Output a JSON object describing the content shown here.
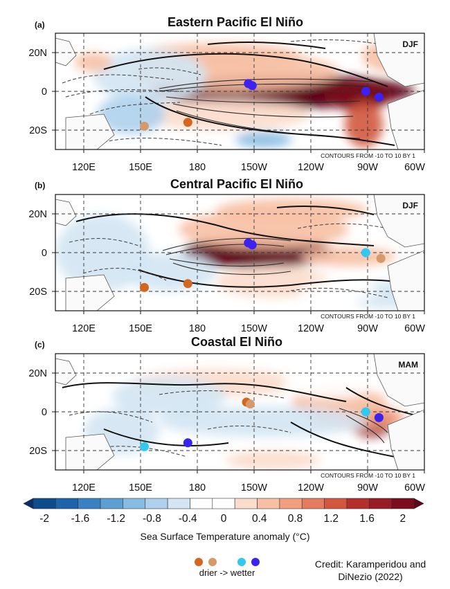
{
  "chart_data": [
    {
      "type": "heatmap",
      "panel_label": "(a)",
      "title": "Eastern Pacific El Niño",
      "season": "DJF",
      "contour_note": "CONTOURS FROM -10 TO 10 BY 1",
      "x_ticks": [
        "120E",
        "150E",
        "180",
        "150W",
        "120W",
        "90W",
        "60W"
      ],
      "y_ticks": [
        "20N",
        "0",
        "20S"
      ],
      "xlim_deg_east": [
        105,
        300
      ],
      "ylim_deg_north": [
        -30,
        30
      ],
      "sst_anomaly_blobs": [
        {
          "lon": 225,
          "lat": 0,
          "rx": 70,
          "ry": 9,
          "value": 2.0
        },
        {
          "lon": 245,
          "lat": -1,
          "rx": 40,
          "ry": 6,
          "value": 2.4
        },
        {
          "lon": 265,
          "lat": -2,
          "rx": 18,
          "ry": 8,
          "value": 1.6
        },
        {
          "lon": 268,
          "lat": -17,
          "rx": 10,
          "ry": 12,
          "value": 1.0
        },
        {
          "lon": 200,
          "lat": 10,
          "rx": 55,
          "ry": 10,
          "value": 0.5
        },
        {
          "lon": 190,
          "lat": 18,
          "rx": 45,
          "ry": 7,
          "value": 0.4
        },
        {
          "lon": 195,
          "lat": -12,
          "rx": 45,
          "ry": 8,
          "value": 0.3
        },
        {
          "lon": 155,
          "lat": 8,
          "rx": 30,
          "ry": 14,
          "value": -0.5
        },
        {
          "lon": 145,
          "lat": -12,
          "rx": 18,
          "ry": 10,
          "value": -0.6
        },
        {
          "lon": 215,
          "lat": -25,
          "rx": 15,
          "ry": 4,
          "value": -0.8
        },
        {
          "lon": 125,
          "lat": 15,
          "rx": 10,
          "ry": 5,
          "value": 0.5
        },
        {
          "lon": 282,
          "lat": 18,
          "rx": 15,
          "ry": 8,
          "value": 0.5
        }
      ],
      "points": [
        {
          "lon": 207,
          "lat": 4,
          "class": "wetter-strong"
        },
        {
          "lon": 209,
          "lat": 3,
          "class": "wetter-strong"
        },
        {
          "lon": 269,
          "lat": 0,
          "class": "wetter-strong"
        },
        {
          "lon": 276,
          "lat": -3,
          "class": "wetter-strong"
        },
        {
          "lon": 152,
          "lat": -18,
          "class": "drier-weak"
        },
        {
          "lon": 175,
          "lat": -16,
          "class": "drier-strong"
        }
      ]
    },
    {
      "type": "heatmap",
      "panel_label": "(b)",
      "title": "Central Pacific El Niño",
      "season": "DJF",
      "contour_note": "CONTOURS FROM -10 TO 10 BY 1",
      "x_ticks": [
        "120E",
        "150E",
        "180",
        "150W",
        "120W",
        "90W",
        "60W"
      ],
      "y_ticks": [
        "20N",
        "0",
        "20S"
      ],
      "xlim_deg_east": [
        105,
        300
      ],
      "ylim_deg_north": [
        -30,
        30
      ],
      "sst_anomaly_blobs": [
        {
          "lon": 212,
          "lat": 0,
          "rx": 40,
          "ry": 8,
          "value": 1.8
        },
        {
          "lon": 205,
          "lat": 1,
          "rx": 20,
          "ry": 5,
          "value": 2.2
        },
        {
          "lon": 215,
          "lat": 12,
          "rx": 45,
          "ry": 10,
          "value": 0.5
        },
        {
          "lon": 230,
          "lat": 22,
          "rx": 40,
          "ry": 6,
          "value": 0.4
        },
        {
          "lon": 260,
          "lat": -2,
          "rx": 25,
          "ry": 5,
          "value": 0.4
        },
        {
          "lon": 220,
          "lat": -15,
          "rx": 30,
          "ry": 8,
          "value": 0.3
        },
        {
          "lon": 130,
          "lat": 0,
          "rx": 25,
          "ry": 20,
          "value": -0.4
        },
        {
          "lon": 165,
          "lat": -10,
          "rx": 25,
          "ry": 10,
          "value": -0.5
        },
        {
          "lon": 280,
          "lat": -22,
          "rx": 20,
          "ry": 7,
          "value": -0.4
        },
        {
          "lon": 255,
          "lat": -20,
          "rx": 20,
          "ry": 6,
          "value": -0.3
        }
      ],
      "points": [
        {
          "lon": 207,
          "lat": 5,
          "class": "wetter-strong"
        },
        {
          "lon": 209,
          "lat": 4,
          "class": "wetter-strong"
        },
        {
          "lon": 269,
          "lat": 0,
          "class": "wetter-weak"
        },
        {
          "lon": 277,
          "lat": -3,
          "class": "drier-weak"
        },
        {
          "lon": 152,
          "lat": -18,
          "class": "drier-strong"
        },
        {
          "lon": 175,
          "lat": -16,
          "class": "drier-strong"
        }
      ]
    },
    {
      "type": "heatmap",
      "panel_label": "(c)",
      "title": "Coastal El Niño",
      "season": "MAM",
      "contour_note": "CONTOURS FROM -10 TO 10 BY 1",
      "x_ticks": [
        "120E",
        "150E",
        "180",
        "150W",
        "120W",
        "90W",
        "60W"
      ],
      "y_ticks": [
        "20N",
        "0",
        "20S"
      ],
      "xlim_deg_east": [
        105,
        300
      ],
      "ylim_deg_north": [
        -30,
        30
      ],
      "sst_anomaly_blobs": [
        {
          "lon": 272,
          "lat": -5,
          "rx": 12,
          "ry": 8,
          "value": 1.4
        },
        {
          "lon": 265,
          "lat": -3,
          "rx": 25,
          "ry": 6,
          "value": 0.7
        },
        {
          "lon": 255,
          "lat": 5,
          "rx": 25,
          "ry": 8,
          "value": 0.4
        },
        {
          "lon": 190,
          "lat": 15,
          "rx": 45,
          "ry": 7,
          "value": 0.3
        },
        {
          "lon": 220,
          "lat": -25,
          "rx": 25,
          "ry": 5,
          "value": 0.3
        },
        {
          "lon": 215,
          "lat": -5,
          "rx": 55,
          "ry": 8,
          "value": -0.4
        },
        {
          "lon": 165,
          "lat": 8,
          "rx": 30,
          "ry": 10,
          "value": -0.4
        },
        {
          "lon": 140,
          "lat": -10,
          "rx": 20,
          "ry": 12,
          "value": -0.5
        },
        {
          "lon": 250,
          "lat": 15,
          "rx": 25,
          "ry": 8,
          "value": -0.3
        },
        {
          "lon": 130,
          "lat": 20,
          "rx": 20,
          "ry": 6,
          "value": -0.3
        }
      ],
      "points": [
        {
          "lon": 206,
          "lat": 5,
          "class": "drier-strong"
        },
        {
          "lon": 208,
          "lat": 4,
          "class": "drier-weak"
        },
        {
          "lon": 269,
          "lat": 0,
          "class": "wetter-weak"
        },
        {
          "lon": 276,
          "lat": -3,
          "class": "wetter-strong"
        },
        {
          "lon": 152,
          "lat": -18,
          "class": "wetter-weak"
        },
        {
          "lon": 175,
          "lat": -16,
          "class": "wetter-strong"
        }
      ]
    }
  ],
  "colorbar": {
    "tick_labels": [
      "-2",
      "-1.6",
      "-1.2",
      "-0.8",
      "-0.4",
      "0",
      "0.4",
      "0.8",
      "1.2",
      "1.6",
      "2"
    ],
    "tick_values": [
      -2,
      -1.6,
      -1.2,
      -0.8,
      -0.4,
      0,
      0.4,
      0.8,
      1.2,
      1.6,
      2
    ],
    "colors": [
      "#08306b",
      "#0e4c8c",
      "#1d64ad",
      "#3a81c4",
      "#5e9fd3",
      "#86bbe2",
      "#aed0ec",
      "#d3e5f3",
      "#ffffff",
      "#ffffff",
      "#fbdccb",
      "#f7c0a4",
      "#f29f7f",
      "#e47b5f",
      "#d1573f",
      "#b6302b",
      "#971c23",
      "#7a0c1e",
      "#5e0716"
    ],
    "label": "Sea Surface Temperature anomaly (°C)"
  },
  "point_legend": {
    "colors": {
      "drier-strong": "#d4661e",
      "drier-weak": "#d69a6a",
      "wetter-weak": "#33c8f0",
      "wetter-strong": "#3b22f0"
    },
    "label": "drier -> wetter"
  },
  "credit": {
    "line1": "Credit: Karamperidou and",
    "line2": "DiNezio (2022)"
  }
}
